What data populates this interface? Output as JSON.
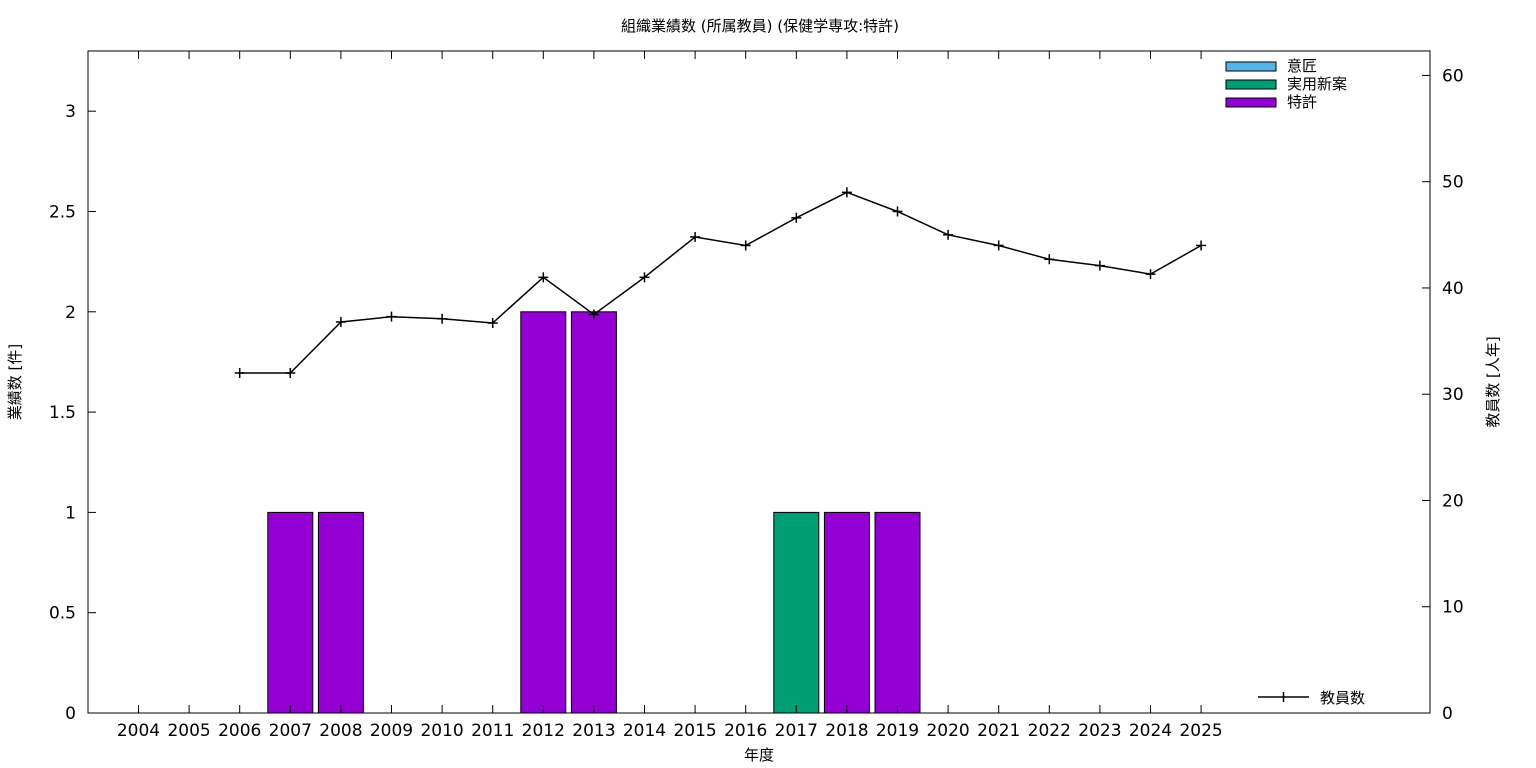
{
  "chart_data": {
    "type": "bar",
    "title": "組織業績数 (所属教員) (保健学専攻:特許)",
    "xlabel": "年度",
    "ylabel": "業績数 [件]",
    "y2label": "教員数 [人年]",
    "categories": [
      "2004",
      "2005",
      "2006",
      "2007",
      "2008",
      "2009",
      "2010",
      "2011",
      "2012",
      "2013",
      "2014",
      "2015",
      "2016",
      "2017",
      "2018",
      "2019",
      "2020",
      "2021",
      "2022",
      "2023",
      "2024",
      "2025"
    ],
    "ylim": [
      0,
      3.3
    ],
    "y2lim": [
      0,
      62.3
    ],
    "yticks": [
      "0",
      "0.5",
      "1",
      "1.5",
      "2",
      "2.5",
      "3"
    ],
    "y2ticks": [
      "0",
      "10",
      "20",
      "30",
      "40",
      "50",
      "60"
    ],
    "stacked": true,
    "legend_position": "top-right",
    "series": [
      {
        "name": "意匠",
        "color": "#56b4e9",
        "values": [
          0,
          0,
          0,
          0,
          0,
          0,
          0,
          0,
          0,
          0,
          0,
          0,
          0,
          0,
          0,
          0,
          0,
          0,
          0,
          0,
          0,
          0
        ]
      },
      {
        "name": "実用新案",
        "color": "#009e73",
        "values": [
          0,
          0,
          0,
          0,
          0,
          0,
          0,
          0,
          0,
          0,
          0,
          0,
          0,
          1,
          0,
          0,
          0,
          0,
          0,
          0,
          0,
          0
        ]
      },
      {
        "name": "特許",
        "color": "#9400d3",
        "values": [
          0,
          0,
          0,
          1,
          1,
          0,
          0,
          0,
          2,
          2,
          0,
          0,
          0,
          0,
          1,
          1,
          0,
          0,
          0,
          0,
          0,
          0
        ]
      }
    ],
    "line_series": {
      "name": "教員数",
      "axis": "y2",
      "color": "#000000",
      "legend_position": "bottom-right",
      "x": [
        "2006",
        "2007",
        "2008",
        "2009",
        "2010",
        "2011",
        "2012",
        "2013",
        "2014",
        "2015",
        "2016",
        "2017",
        "2018",
        "2019",
        "2020",
        "2021",
        "2022",
        "2023",
        "2024",
        "2025"
      ],
      "values": [
        32,
        32,
        36.8,
        37.3,
        37.1,
        36.7,
        41,
        37.5,
        41,
        44.8,
        44,
        46.6,
        49,
        47.2,
        45,
        44,
        42.7,
        42.1,
        41.3,
        44
      ]
    }
  }
}
